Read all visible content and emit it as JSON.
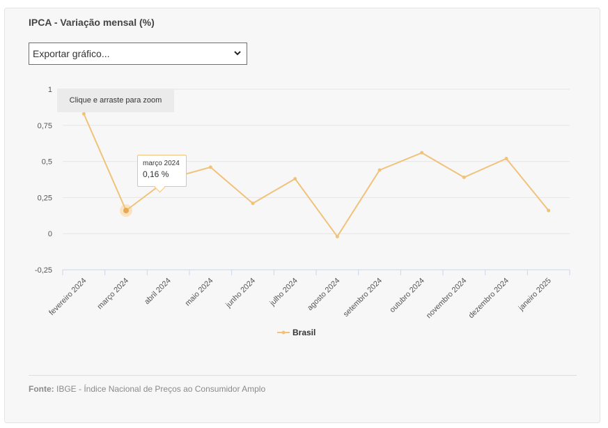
{
  "card": {
    "title": "IPCA - Variação mensal (%)",
    "export_select": {
      "selected": "Exportar gráfico..."
    },
    "zoom_hint": "Clique e arraste para zoom",
    "source_label": "Fonte:",
    "source_text": "IBGE - Índice Nacional de Preços ao Consumidor Amplo"
  },
  "tooltip": {
    "category": "março 2024",
    "value": "0,16 %"
  },
  "colors": {
    "series": "#f0c27a",
    "highlight": "#fbe3c1",
    "grid": "#e6e6e6",
    "axis": "#ccd6eb"
  },
  "chart_data": {
    "type": "line",
    "title": "IPCA - Variação mensal (%)",
    "xlabel": "",
    "ylabel": "",
    "ylim": [
      -0.25,
      1
    ],
    "yticks": [
      -0.25,
      0,
      0.25,
      0.5,
      0.75,
      1
    ],
    "ytick_labels": [
      "-0,25",
      "0",
      "0,25",
      "0,5",
      "0,75",
      "1"
    ],
    "categories": [
      "fevereiro 2024",
      "março 2024",
      "abril 2024",
      "maio 2024",
      "junho 2024",
      "julho 2024",
      "agosto 2024",
      "setembro 2024",
      "outubro 2024",
      "novembro 2024",
      "dezembro 2024",
      "janeiro 2025"
    ],
    "series": [
      {
        "name": "Brasil",
        "values": [
          0.83,
          0.16,
          0.38,
          0.46,
          0.21,
          0.38,
          -0.02,
          0.44,
          0.56,
          0.39,
          0.52,
          0.16
        ]
      }
    ],
    "grid": true,
    "legend": "bottom-center",
    "highlighted_index": 1
  }
}
